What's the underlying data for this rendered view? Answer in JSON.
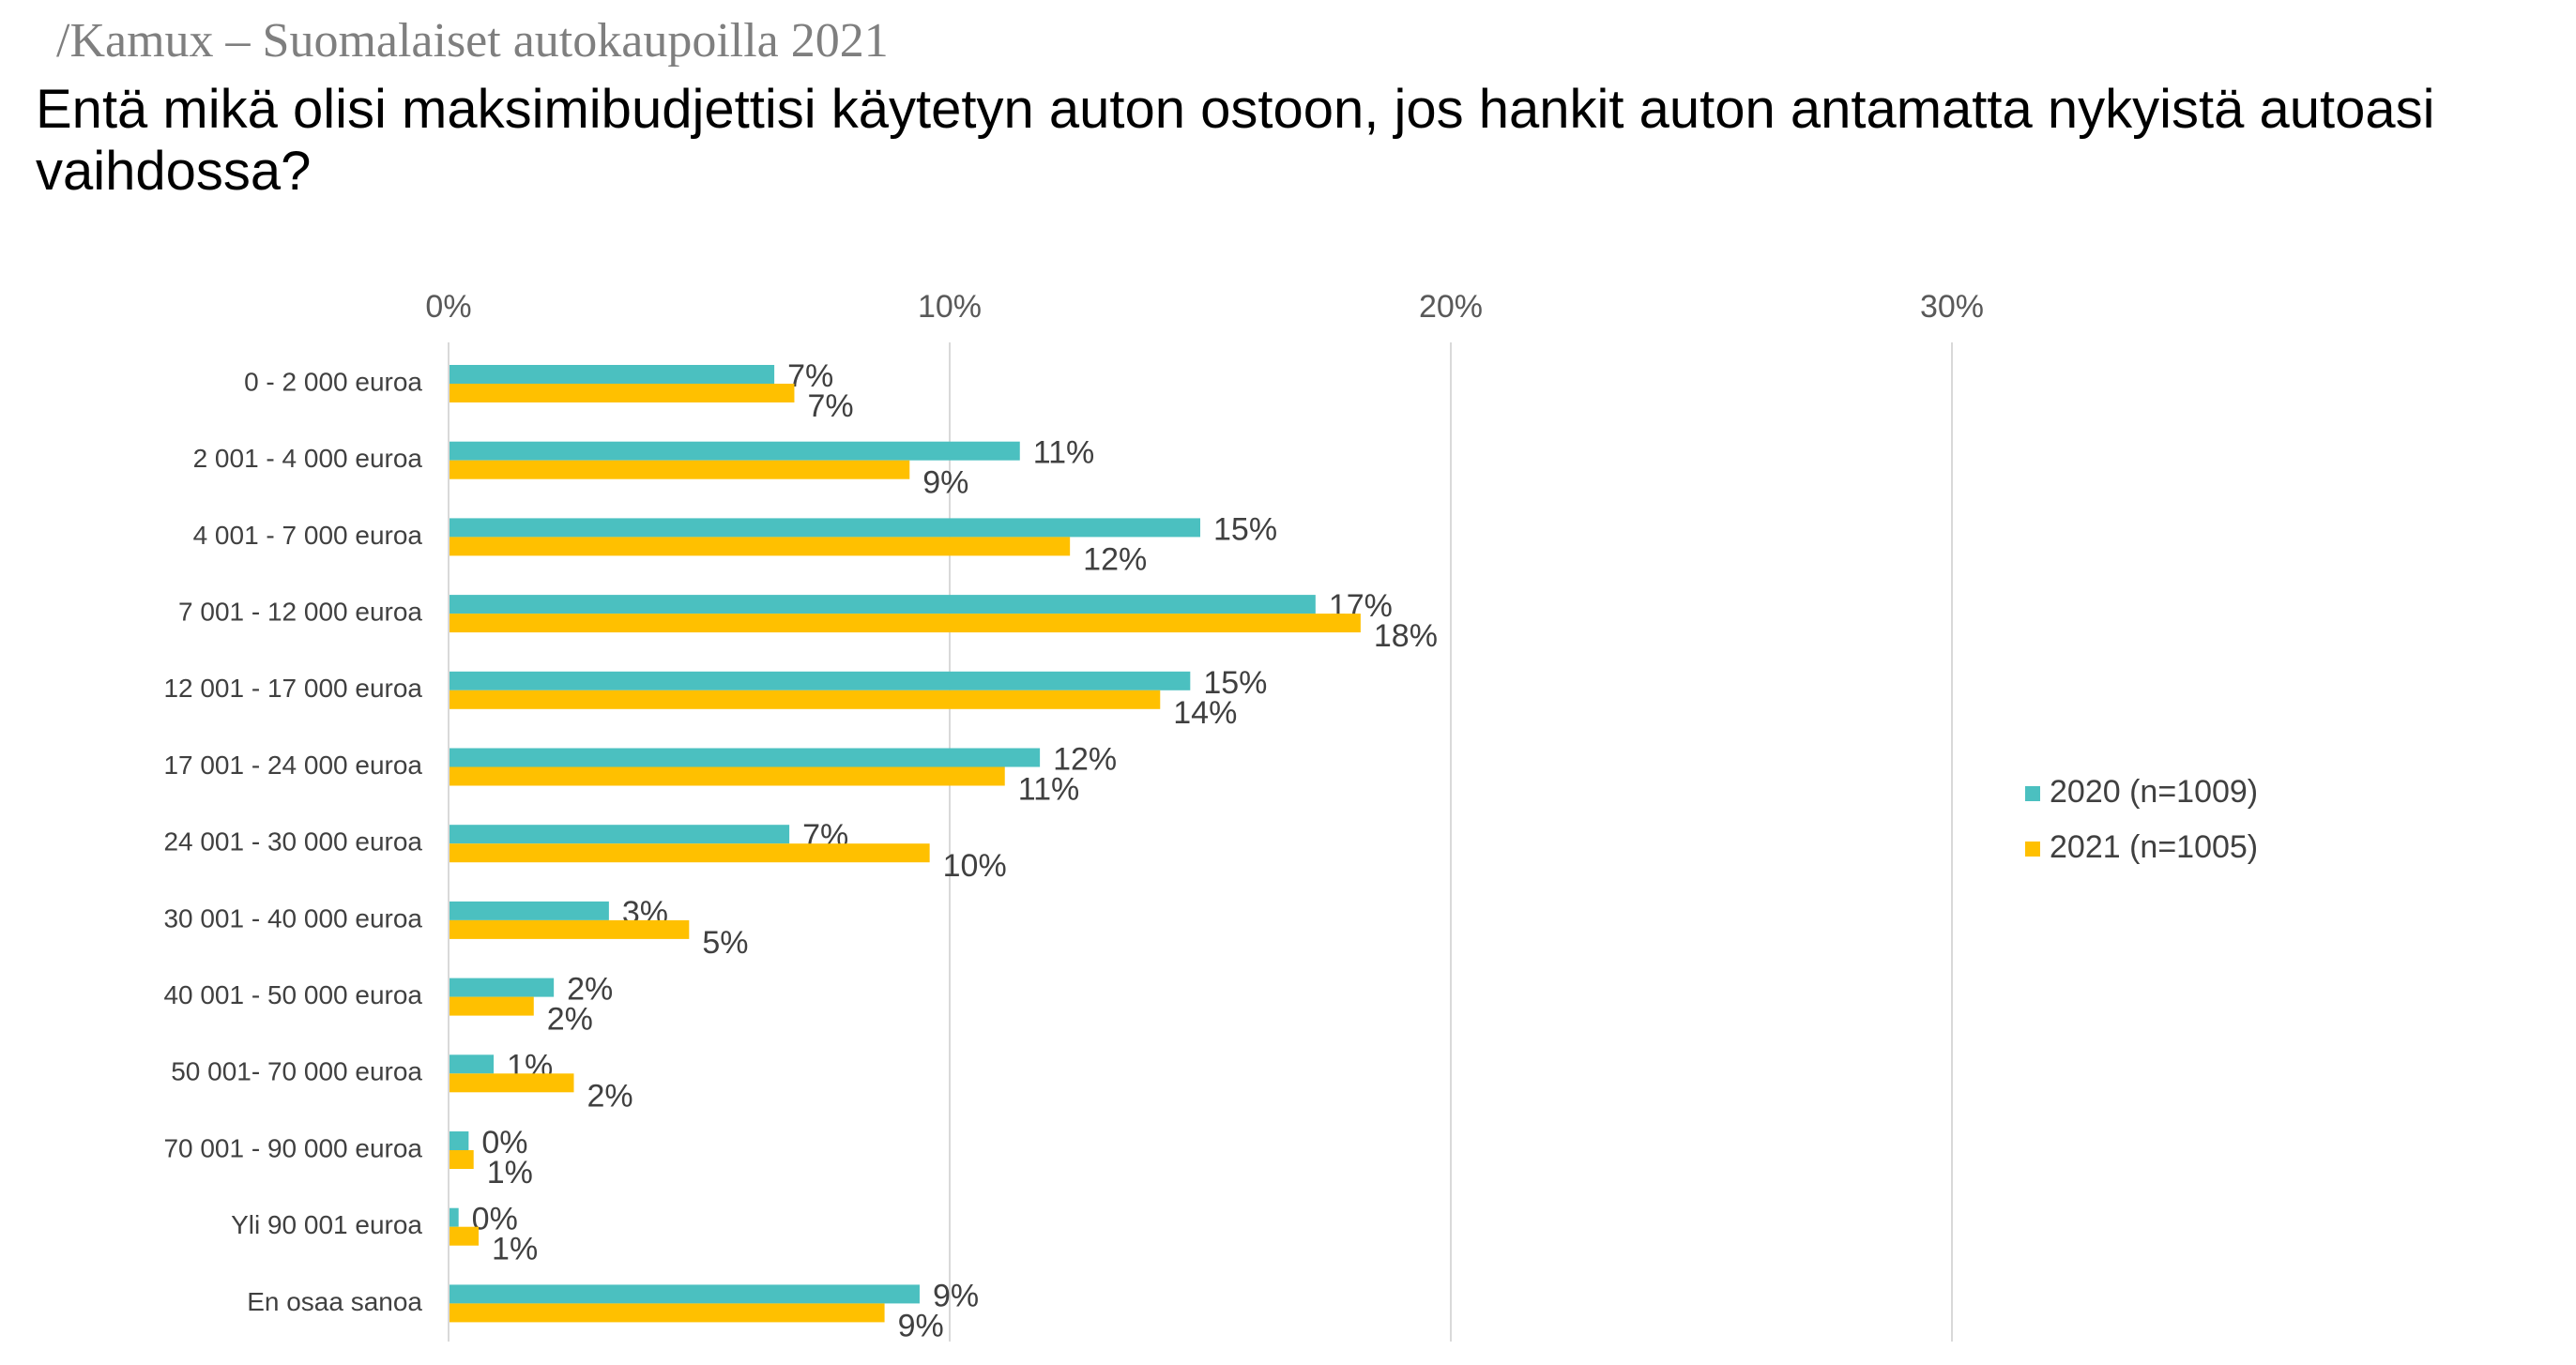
{
  "header": {
    "source": "/Kamux – Suomalaiset autokaupoilla 2021",
    "title": "Entä mikä olisi maksimibudjettisi käytetyn auton ostoon, jos hankit auton antamatta nykyistä autoasi vaihdossa?"
  },
  "chart_data": {
    "type": "bar",
    "orientation": "horizontal",
    "title": "",
    "xlabel": "",
    "ylabel": "",
    "xlim": [
      0,
      30
    ],
    "x_ticks": [
      "0%",
      "10%",
      "20%",
      "30%"
    ],
    "grid": true,
    "legend_position": "right",
    "categories": [
      "0 - 2 000 euroa",
      "2 001 - 4 000 euroa",
      "4 001 - 7 000 euroa",
      "7 001 - 12 000 euroa",
      "12 001 - 17 000 euroa",
      "17 001 - 24 000 euroa",
      "24 001 - 30 000 euroa",
      "30 001 - 40 000 euroa",
      "40 001 - 50 000 euroa",
      "50 001- 70 000 euroa",
      "70 001 - 90 000 euroa",
      "Yli 90 001 euroa",
      "En osaa sanoa"
    ],
    "series": [
      {
        "name": "2020 (n=1009)",
        "color": "#4BC0C0",
        "values": [
          6.5,
          11.4,
          15.0,
          17.3,
          14.8,
          11.8,
          6.8,
          3.2,
          2.1,
          0.9,
          0.4,
          0.2,
          9.4
        ],
        "labels": [
          "7%",
          "11%",
          "15%",
          "17%",
          "15%",
          "12%",
          "7%",
          "3%",
          "2%",
          "1%",
          "0%",
          "0%",
          "9%"
        ]
      },
      {
        "name": "2021 (n=1005)",
        "color": "#FFC000",
        "values": [
          6.9,
          9.2,
          12.4,
          18.2,
          14.2,
          11.1,
          9.6,
          4.8,
          1.7,
          2.5,
          0.5,
          0.6,
          8.7
        ],
        "labels": [
          "7%",
          "9%",
          "12%",
          "18%",
          "14%",
          "11%",
          "10%",
          "5%",
          "2%",
          "2%",
          "1%",
          "1%",
          "9%"
        ]
      }
    ]
  }
}
